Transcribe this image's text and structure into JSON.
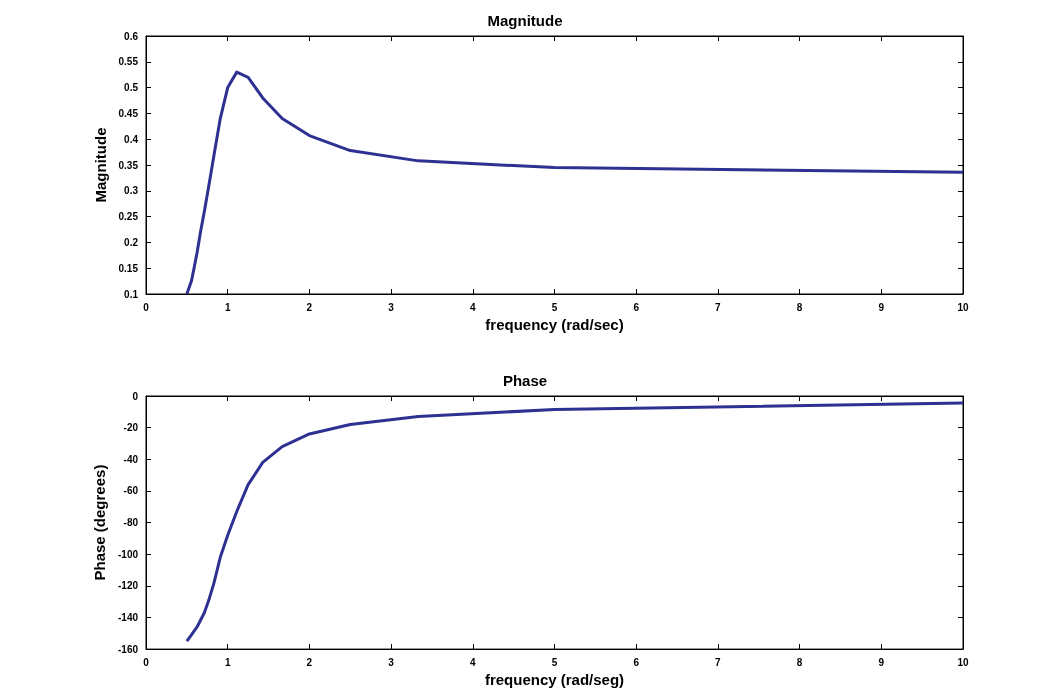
{
  "chart_data": [
    {
      "type": "line",
      "title": "Magnitude",
      "xlabel": "frequency (rad/sec)",
      "ylabel": "Magnitude",
      "x": [
        0.5,
        0.556,
        0.588,
        0.625,
        0.667,
        0.714,
        0.769,
        0.833,
        0.909,
        1,
        1.111,
        1.25,
        1.429,
        1.667,
        2,
        2.5,
        3.333,
        5,
        10
      ],
      "series": [
        {
          "color": "#2e3192",
          "values": [
            0.1,
            0.125,
            0.15,
            0.18,
            0.22,
            0.26,
            0.31,
            0.37,
            0.44,
            0.5,
            0.53,
            0.52,
            0.48,
            0.44,
            0.407,
            0.378,
            0.358,
            0.345,
            0.336
          ]
        }
      ],
      "xlim": [
        0,
        10
      ],
      "xticks": [
        0,
        1,
        2,
        3,
        4,
        5,
        6,
        7,
        8,
        9,
        10
      ],
      "ylim": [
        0.1,
        0.6
      ],
      "yticks": [
        0.1,
        0.15,
        0.2,
        0.25,
        0.3,
        0.35,
        0.4,
        0.45,
        0.5,
        0.55,
        0.6
      ],
      "grid": false,
      "marker": "none",
      "line_style": "solid"
    },
    {
      "type": "line",
      "title": "Phase",
      "xlabel": "frequency (rad/seg)",
      "ylabel": "Phase (degrees)",
      "x": [
        0.5,
        0.556,
        0.625,
        0.714,
        0.769,
        0.833,
        0.909,
        1,
        1.111,
        1.25,
        1.429,
        1.667,
        2,
        2.5,
        3.333,
        5,
        10
      ],
      "series": [
        {
          "color": "#2e3192",
          "values": [
            -155,
            -151,
            -146,
            -137,
            -129,
            -118,
            -102,
            -88,
            -73,
            -56,
            -42,
            -32,
            -24,
            -18,
            -13,
            -8.5,
            -4.5
          ]
        }
      ],
      "xlim": [
        0,
        10
      ],
      "xticks": [
        0,
        1,
        2,
        3,
        4,
        5,
        6,
        7,
        8,
        9,
        10
      ],
      "ylim": [
        -160,
        0
      ],
      "yticks": [
        -160,
        -140,
        -120,
        -100,
        -80,
        -60,
        -40,
        -20,
        0
      ],
      "grid": false,
      "marker": "none",
      "line_style": "solid"
    }
  ]
}
